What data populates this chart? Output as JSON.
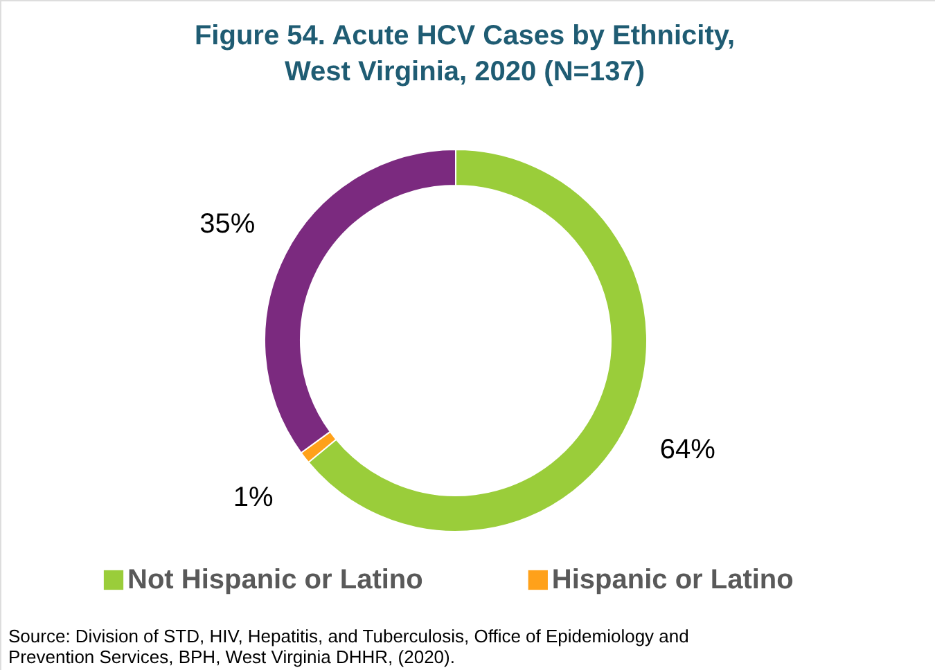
{
  "chart_data": {
    "type": "donut",
    "title": "Figure 54. Acute HCV Cases by Ethnicity, West Virginia, 2020 (N=137)",
    "categories": [
      "Not Hispanic or Latino",
      "Hispanic or Latino",
      null
    ],
    "values": [
      64,
      1,
      35
    ],
    "colors": [
      "#9acd3a",
      "#ffa11a",
      "#7b2a7f"
    ],
    "value_labels": [
      "64%",
      "1%",
      "35%"
    ],
    "legend": "bottom",
    "annotations": [
      "Source: Division of STD, HIV, Hepatitis, and Tuberculosis, Office of Epidemiology and Prevention Services, BPH, West Virginia DHHR, (2020)."
    ]
  }
}
